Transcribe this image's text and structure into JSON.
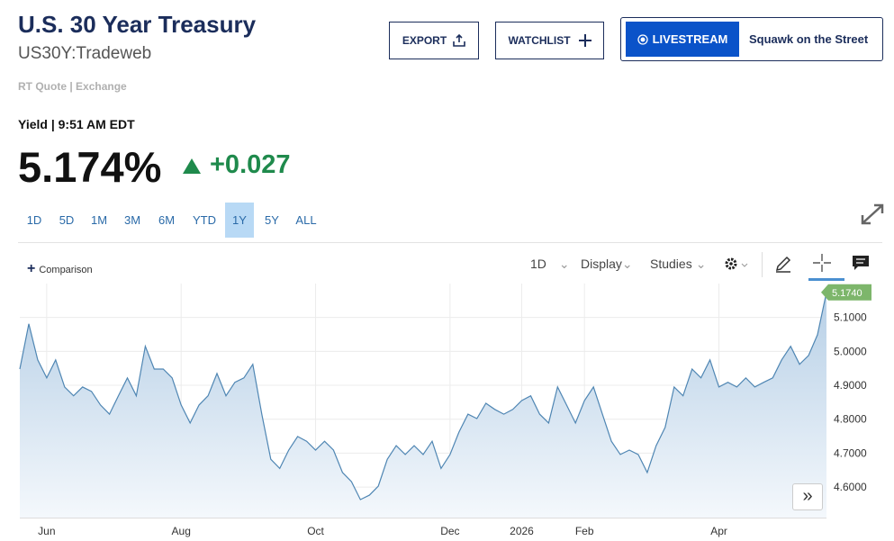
{
  "header": {
    "title": "U.S. 30 Year Treasury",
    "symbol": "US30Y:Tradeweb",
    "quote_source": "RT Quote | Exchange",
    "yield_time": "Yield | 9:51 AM EDT",
    "price": "5.174%",
    "change": "+0.027"
  },
  "buttons": {
    "export": "EXPORT",
    "watchlist": "WATCHLIST",
    "livestream": "LIVESTREAM",
    "show": "Squawk on the Street"
  },
  "ranges": [
    "1D",
    "5D",
    "1M",
    "3M",
    "6M",
    "YTD",
    "1Y",
    "5Y",
    "ALL"
  ],
  "active_range": "1Y",
  "toolbar": {
    "comparison": "Comparison",
    "interval": "1D",
    "display": "Display",
    "studies": "Studies"
  },
  "chart_data": {
    "type": "area",
    "values": [
      4.948,
      5.081,
      4.975,
      4.922,
      4.975,
      4.895,
      4.869,
      4.895,
      4.882,
      4.842,
      4.815,
      4.869,
      4.922,
      4.869,
      5.015,
      4.948,
      4.948,
      4.922,
      4.842,
      4.789,
      4.842,
      4.869,
      4.935,
      4.869,
      4.909,
      4.922,
      4.962,
      4.815,
      4.682,
      4.655,
      4.709,
      4.749,
      4.735,
      4.709,
      4.735,
      4.709,
      4.643,
      4.616,
      4.563,
      4.576,
      4.603,
      4.682,
      4.722,
      4.696,
      4.722,
      4.696,
      4.735,
      4.655,
      4.696,
      4.762,
      4.815,
      4.802,
      4.847,
      4.829,
      4.815,
      4.829,
      4.855,
      4.869,
      4.815,
      4.789,
      4.895,
      4.842,
      4.789,
      4.855,
      4.895,
      4.815,
      4.735,
      4.696,
      4.709,
      4.696,
      4.643,
      4.722,
      4.776,
      4.895,
      4.869,
      4.948,
      4.922,
      4.975,
      4.895,
      4.909,
      4.895,
      4.922,
      4.895,
      4.909,
      4.922,
      4.975,
      5.015,
      4.962,
      4.988,
      5.049,
      5.174
    ],
    "color": "#4f86b3",
    "xlim": [
      0,
      90
    ],
    "xticks": [
      {
        "value": 3,
        "label": "Jun"
      },
      {
        "value": 18,
        "label": "Aug"
      },
      {
        "value": 33,
        "label": "Oct"
      },
      {
        "value": 48,
        "label": "Dec"
      },
      {
        "value": 56,
        "label": "2026"
      },
      {
        "value": 63,
        "label": "Feb"
      },
      {
        "value": 78,
        "label": "Apr"
      }
    ],
    "ylim": [
      4.51,
      5.2
    ],
    "yticks": [
      {
        "value": 4.6,
        "label": "4.6000"
      },
      {
        "value": 4.7,
        "label": "4.7000"
      },
      {
        "value": 4.8,
        "label": "4.8000"
      },
      {
        "value": 4.9,
        "label": "4.9000"
      },
      {
        "value": 5.0,
        "label": "5.0000"
      },
      {
        "value": 5.1,
        "label": "5.1000"
      }
    ],
    "last_price": {
      "value": 5.174,
      "label": "5.1740"
    },
    "grid": true
  }
}
